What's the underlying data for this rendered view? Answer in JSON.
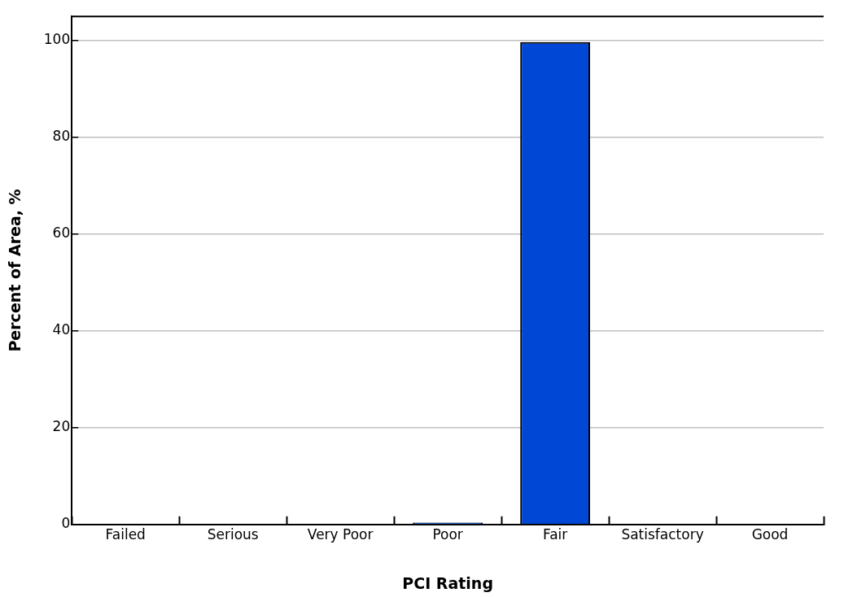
{
  "chart_data": {
    "type": "bar",
    "xlabel": "PCI Rating",
    "ylabel": "Percent of Area, %",
    "categories": [
      "Failed",
      "Serious",
      "Very Poor",
      "Poor",
      "Fair",
      "Satisfactory",
      "Good"
    ],
    "values": [
      0,
      0,
      0,
      0.4,
      99.7,
      0,
      0
    ],
    "color": "#0047d6",
    "ylim": [
      0,
      105
    ],
    "yticks": [
      0,
      20,
      40,
      60,
      80,
      100
    ],
    "grid": "y",
    "legend": false
  }
}
